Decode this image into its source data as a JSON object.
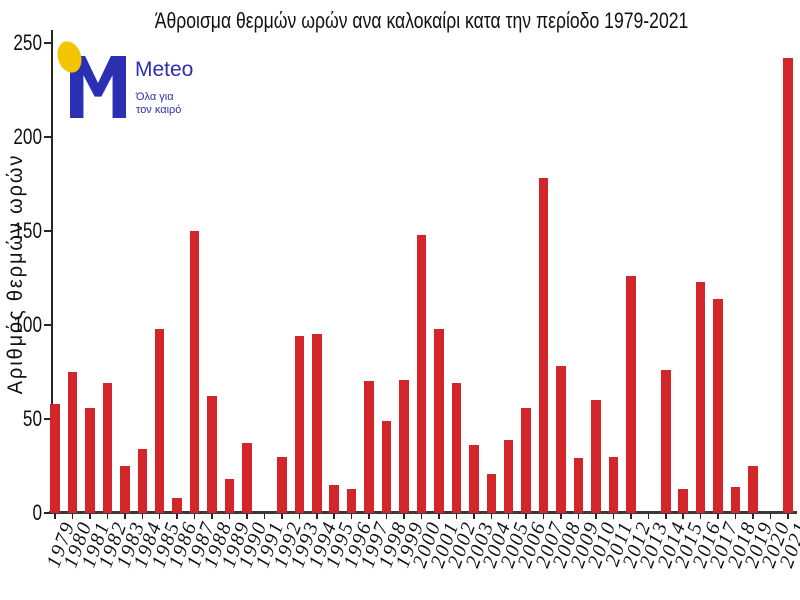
{
  "logo": {
    "brand": "Meteo",
    "slogan_line1": "Όλα για",
    "slogan_line2": "τον καιρό",
    "brand_color": "#2b2fb3",
    "sun_color": "#f2c500",
    "m_icon": "meteo-m-monogram",
    "sun_icon": "yellow-sun-ellipse"
  },
  "chart_data": {
    "type": "bar",
    "title": "Άθροισμα θερμών ωρών ανα καλοκαίρι κατα την περίοδο 1979-2021",
    "xlabel": "",
    "ylabel": "Αριθμός θερμών ωρών",
    "categories": [
      "1979",
      "1980",
      "1981",
      "1982",
      "1983",
      "1984",
      "1985",
      "1986",
      "1987",
      "1988",
      "1989",
      "1990",
      "1991",
      "1992",
      "1993",
      "1994",
      "1995",
      "1996",
      "1997",
      "1998",
      "1999",
      "2000",
      "2001",
      "2002",
      "2003",
      "2004",
      "2005",
      "2006",
      "2007",
      "2008",
      "2009",
      "2010",
      "2011",
      "2012",
      "2013",
      "2014",
      "2015",
      "2016",
      "2017",
      "2018",
      "2019",
      "2020",
      "2021"
    ],
    "values": [
      58,
      75,
      56,
      69,
      25,
      34,
      98,
      8,
      150,
      62,
      18,
      37,
      0,
      30,
      94,
      95,
      15,
      13,
      70,
      49,
      71,
      148,
      98,
      69,
      36,
      21,
      39,
      56,
      178,
      78,
      29,
      60,
      30,
      126,
      0,
      76,
      13,
      123,
      114,
      14,
      25,
      0,
      242
    ],
    "ylim": [
      0,
      250
    ],
    "yticks": [
      0,
      50,
      100,
      150,
      200,
      250
    ],
    "bar_color": "#d2262a",
    "grid": false,
    "legend": null
  }
}
